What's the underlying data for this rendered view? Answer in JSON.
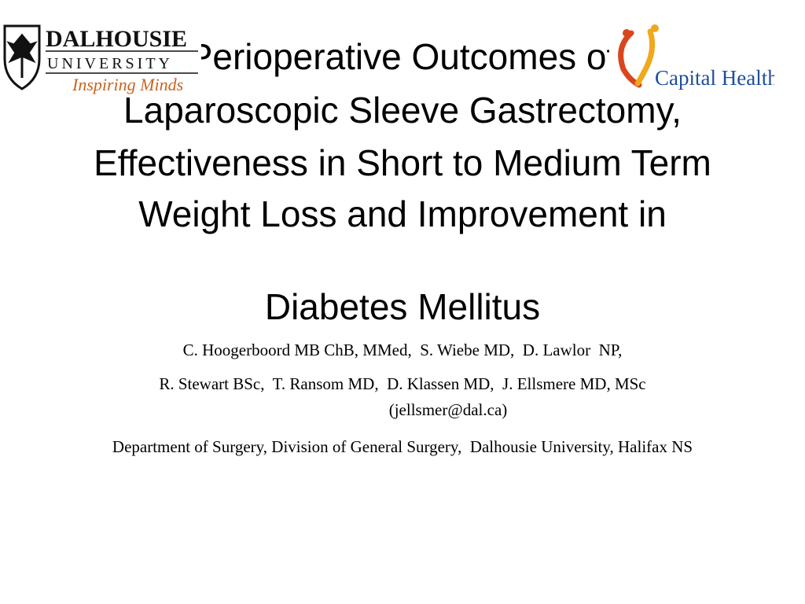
{
  "header": {
    "title_lines": [
      "Perioperative Outcomes of",
      "Laparoscopic Sleeve Gastrectomy,",
      "Effectiveness in Short to Medium Term",
      "Weight Loss and Improvement in",
      "Diabetes Mellitus"
    ]
  },
  "logos": {
    "dalhousie": {
      "name": "DALHOUSIE",
      "subname": "UNIVERSITY",
      "tagline": "Inspiring Minds"
    },
    "capital_health": {
      "name": "Capital Health"
    }
  },
  "authors": [
    "C. Hoogerboord MB ChB, MMed,  S. Wiebe MD,  D. Lawlor  NP,",
    "R. Stewart BSc,  T. Ransom MD,  D. Klassen MD,  J. Ellsmere MD, MSc",
    "(jellsmer@dal.ca)"
  ],
  "affiliation": "Department of Surgery, Division of General Surgery,  Dalhousie University, Halifax NS"
}
